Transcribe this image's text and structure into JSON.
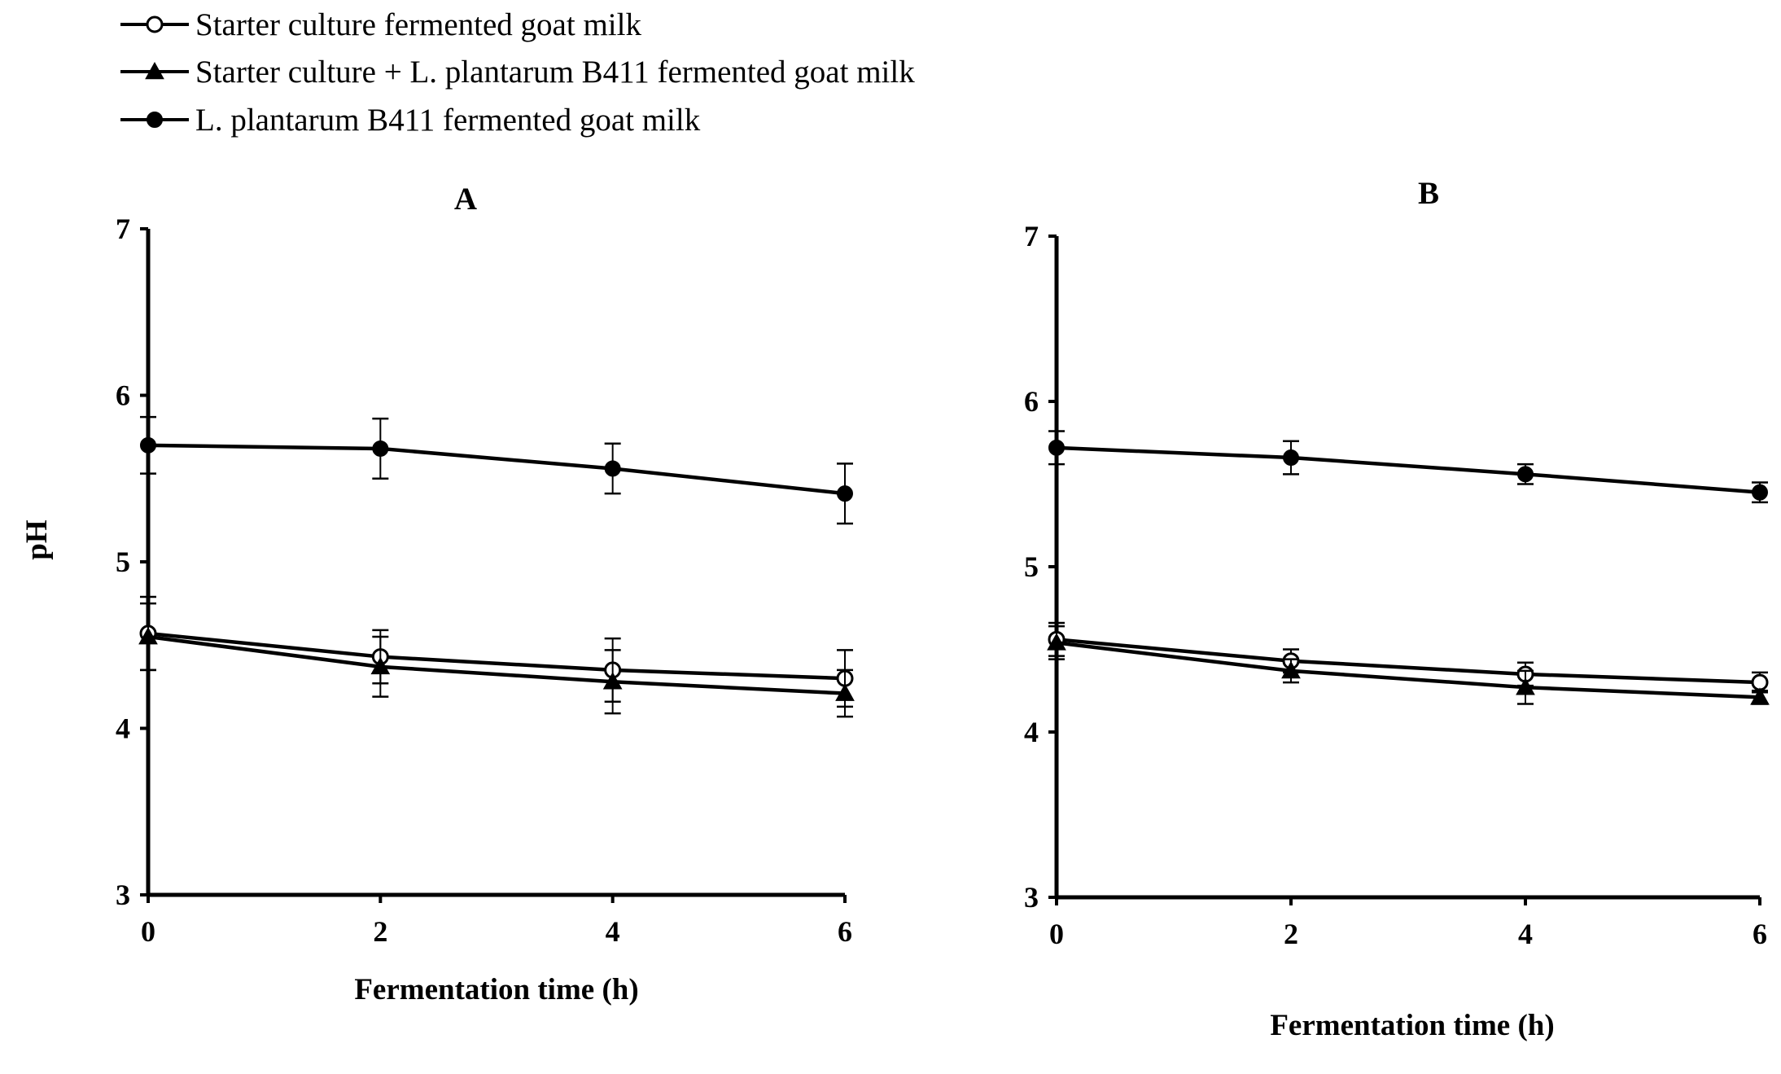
{
  "legend": {
    "items": [
      {
        "label": "Starter culture fermented goat milk",
        "marker": "open-circle"
      },
      {
        "label": "Starter culture + L. plantarum B411 fermented goat milk",
        "marker": "filled-triangle"
      },
      {
        "label": "L. plantarum B411 fermented goat milk",
        "marker": "filled-circle"
      }
    ]
  },
  "chart_data": [
    {
      "type": "line",
      "title": "A",
      "xlabel": "Fermentation time (h)",
      "ylabel": "pH",
      "x": [
        0,
        2,
        4,
        6
      ],
      "xlim": [
        0,
        6
      ],
      "ylim": [
        3,
        7
      ],
      "xticks": [
        "0",
        "2",
        "4",
        "6"
      ],
      "yticks": [
        "3",
        "4",
        "5",
        "6",
        "7"
      ],
      "grid": false,
      "series": [
        {
          "name": "Starter culture fermented goat milk",
          "marker": "open-circle",
          "values": [
            4.57,
            4.43,
            4.35,
            4.3
          ],
          "error": [
            0.22,
            0.16,
            0.19,
            0.17
          ]
        },
        {
          "name": "Starter culture + L. plantarum B411 fermented goat milk",
          "marker": "filled-triangle",
          "values": [
            4.55,
            4.37,
            4.28,
            4.21
          ],
          "error": [
            0.2,
            0.18,
            0.19,
            0.14
          ]
        },
        {
          "name": "L. plantarum B411 fermented goat milk",
          "marker": "filled-circle",
          "values": [
            5.7,
            5.68,
            5.56,
            5.41
          ],
          "error": [
            0.17,
            0.18,
            0.15,
            0.18
          ]
        }
      ]
    },
    {
      "type": "line",
      "title": "B",
      "xlabel": "Fermentation time (h)",
      "ylabel": "",
      "x": [
        0,
        2,
        4,
        6
      ],
      "xlim": [
        0,
        6
      ],
      "ylim": [
        3,
        7
      ],
      "xticks": [
        "0",
        "2",
        "4",
        "6"
      ],
      "yticks": [
        "3",
        "4",
        "5",
        "6",
        "7"
      ],
      "grid": false,
      "series": [
        {
          "name": "Starter culture fermented goat milk",
          "marker": "open-circle",
          "values": [
            4.56,
            4.43,
            4.35,
            4.3
          ],
          "error": [
            0.1,
            0.07,
            0.07,
            0.06
          ]
        },
        {
          "name": "Starter culture + L. plantarum B411 fermented goat milk",
          "marker": "filled-triangle",
          "values": [
            4.54,
            4.37,
            4.27,
            4.21
          ],
          "error": [
            0.1,
            0.07,
            0.1,
            0.04
          ]
        },
        {
          "name": "L. plantarum B411 fermented goat milk",
          "marker": "filled-circle",
          "values": [
            5.72,
            5.66,
            5.56,
            5.45
          ],
          "error": [
            0.1,
            0.1,
            0.06,
            0.06
          ]
        }
      ]
    }
  ]
}
